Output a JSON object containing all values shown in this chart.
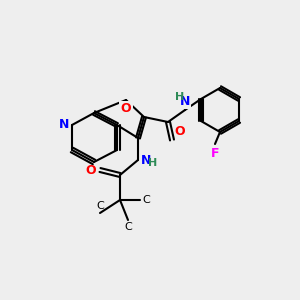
{
  "background_color": "#eeeeee",
  "bond_color": "#000000",
  "atom_colors": {
    "N": "#0000ff",
    "O": "#ff0000",
    "F": "#ff00ff",
    "H": "#2e8b57",
    "C": "#000000"
  },
  "font_size": 8,
  "bond_width": 1.5
}
